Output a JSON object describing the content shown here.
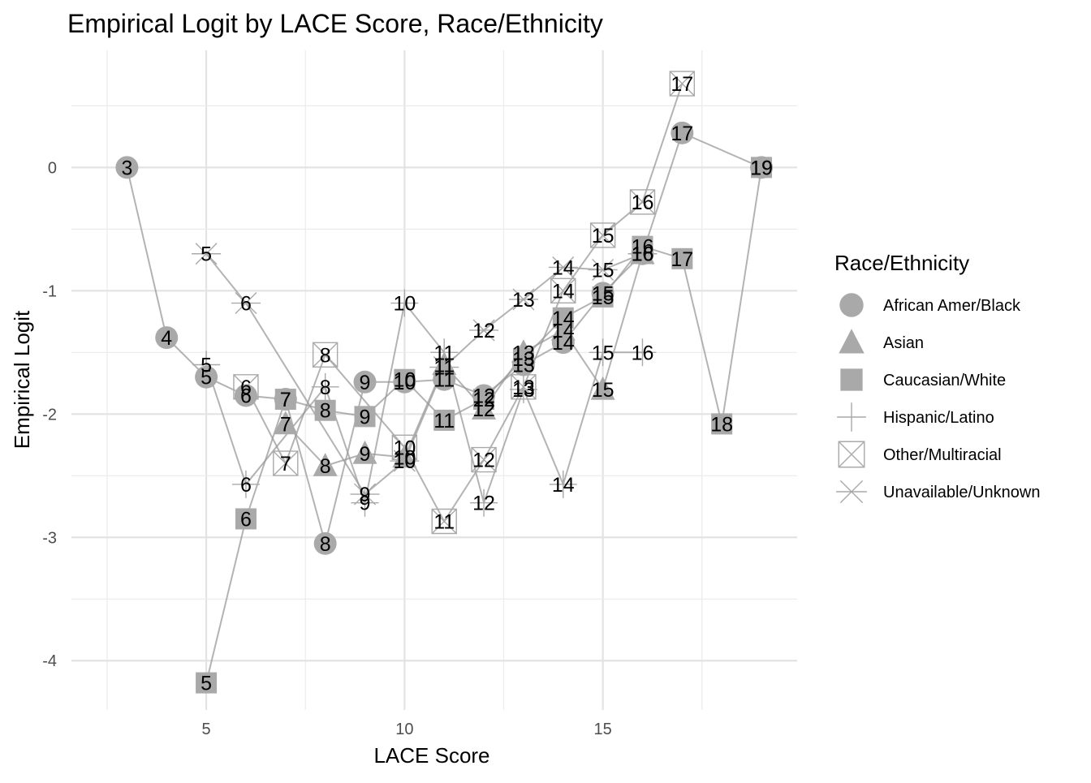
{
  "chart_data": {
    "type": "scatter",
    "title": "Empirical Logit by LACE Score, Race/Ethnicity",
    "xlabel": "LACE Score",
    "ylabel": "Empirical Logit",
    "xlim": [
      1.6,
      19.9
    ],
    "ylim": [
      -4.4,
      0.95
    ],
    "x_ticks": [
      5,
      10,
      15
    ],
    "y_ticks": [
      0,
      -1,
      -2,
      -3,
      -4
    ],
    "grid": true,
    "legend": {
      "title": "Race/Ethnicity",
      "placement": "right"
    },
    "series": [
      {
        "name": "African Amer/Black",
        "shape": "circle",
        "points": [
          {
            "x": 3,
            "y": 0.0
          },
          {
            "x": 4,
            "y": -1.38
          },
          {
            "x": 5,
            "y": -1.7
          },
          {
            "x": 6,
            "y": -1.85
          },
          {
            "x": 7,
            "y": -1.88
          },
          {
            "x": 8,
            "y": -3.05
          },
          {
            "x": 9,
            "y": -1.74
          },
          {
            "x": 10,
            "y": -1.74
          },
          {
            "x": 11,
            "y": -1.72
          },
          {
            "x": 12,
            "y": -1.85
          },
          {
            "x": 13,
            "y": -1.6
          },
          {
            "x": 14,
            "y": -1.42
          },
          {
            "x": 15,
            "y": -1.02
          },
          {
            "x": 16,
            "y": -0.7
          },
          {
            "x": 17,
            "y": 0.28
          },
          {
            "x": 19,
            "y": 0.0
          }
        ]
      },
      {
        "name": "Asian",
        "shape": "triangle",
        "points": [
          {
            "x": 7,
            "y": -2.08
          },
          {
            "x": 8,
            "y": -2.42
          },
          {
            "x": 9,
            "y": -2.32
          },
          {
            "x": 10,
            "y": -2.35
          },
          {
            "x": 11,
            "y": -1.6
          },
          {
            "x": 12,
            "y": -1.96
          },
          {
            "x": 13,
            "y": -1.5
          },
          {
            "x": 14,
            "y": -1.32
          },
          {
            "x": 15,
            "y": -1.8
          },
          {
            "x": 16,
            "y": -0.7
          }
        ]
      },
      {
        "name": "Caucasian/White",
        "shape": "square",
        "points": [
          {
            "x": 5,
            "y": -4.18
          },
          {
            "x": 6,
            "y": -2.85
          },
          {
            "x": 7,
            "y": -1.88
          },
          {
            "x": 8,
            "y": -1.97
          },
          {
            "x": 9,
            "y": -2.02
          },
          {
            "x": 10,
            "y": -1.72
          },
          {
            "x": 11,
            "y": -2.05
          },
          {
            "x": 12,
            "y": -1.88
          },
          {
            "x": 13,
            "y": -1.55
          },
          {
            "x": 14,
            "y": -1.22
          },
          {
            "x": 15,
            "y": -1.05
          },
          {
            "x": 16,
            "y": -0.64
          },
          {
            "x": 17,
            "y": -0.74
          },
          {
            "x": 18,
            "y": -2.08
          },
          {
            "x": 19,
            "y": 0.0
          }
        ]
      },
      {
        "name": "Hispanic/Latino",
        "shape": "plus",
        "points": [
          {
            "x": 5,
            "y": -1.6
          },
          {
            "x": 6,
            "y": -2.57
          },
          {
            "x": 8,
            "y": -1.78
          },
          {
            "x": 9,
            "y": -2.72
          },
          {
            "x": 10,
            "y": -1.1
          },
          {
            "x": 11,
            "y": -1.5
          },
          {
            "x": 12,
            "y": -2.72
          },
          {
            "x": 13,
            "y": -1.8
          },
          {
            "x": 14,
            "y": -2.57
          },
          {
            "x": 15,
            "y": -1.5
          },
          {
            "x": 16,
            "y": -1.5
          }
        ]
      },
      {
        "name": "Other/Multiracial",
        "shape": "boxx",
        "points": [
          {
            "x": 6,
            "y": -1.78
          },
          {
            "x": 7,
            "y": -2.4
          },
          {
            "x": 8,
            "y": -1.52
          },
          {
            "x": 10,
            "y": -2.27
          },
          {
            "x": 11,
            "y": -2.87
          },
          {
            "x": 12,
            "y": -2.37
          },
          {
            "x": 13,
            "y": -1.78
          },
          {
            "x": 14,
            "y": -1.0
          },
          {
            "x": 15,
            "y": -0.55
          },
          {
            "x": 16,
            "y": -0.28
          },
          {
            "x": 17,
            "y": 0.68
          }
        ]
      },
      {
        "name": "Unavailable/Unknown",
        "shape": "asterisk",
        "points": [
          {
            "x": 5,
            "y": -0.7
          },
          {
            "x": 6,
            "y": -1.1
          },
          {
            "x": 9,
            "y": -2.65
          },
          {
            "x": 10,
            "y": -2.38
          },
          {
            "x": 11,
            "y": -1.62
          },
          {
            "x": 12,
            "y": -1.32
          },
          {
            "x": 13,
            "y": -1.07
          },
          {
            "x": 14,
            "y": -0.81
          },
          {
            "x": 15,
            "y": -0.83
          },
          {
            "x": 16,
            "y": -0.7
          }
        ]
      }
    ]
  }
}
